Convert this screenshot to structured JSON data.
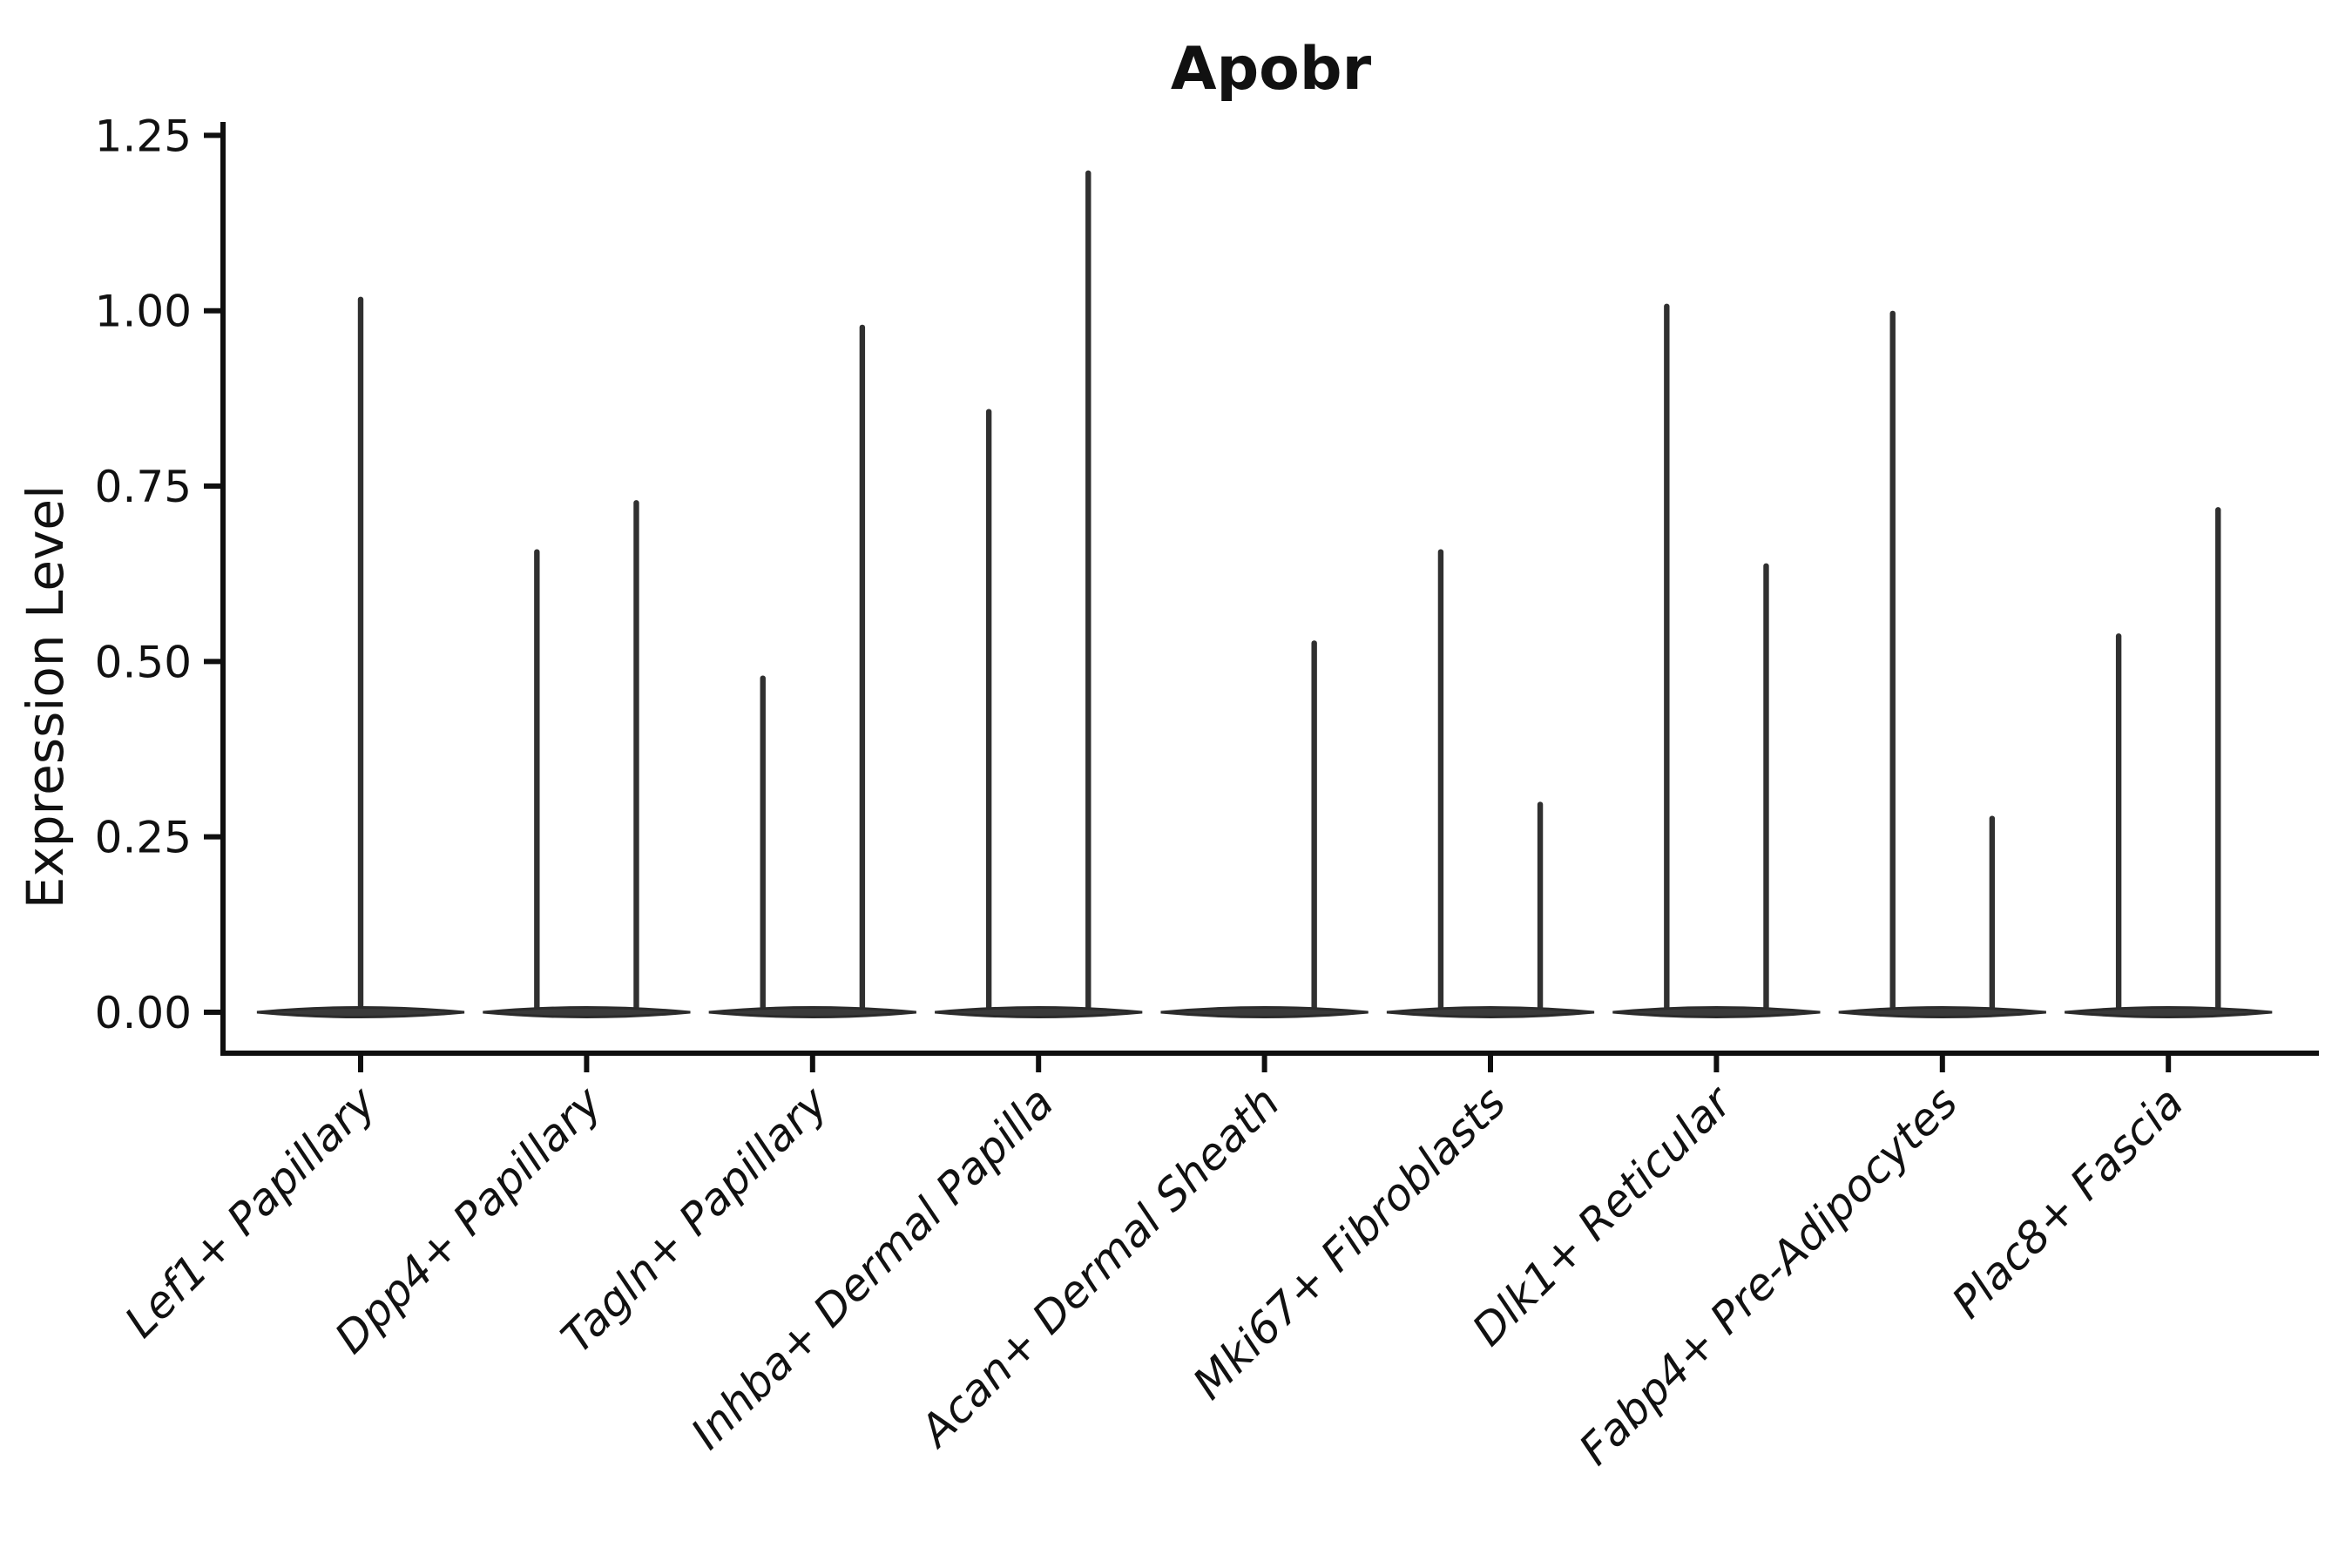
{
  "chart_data": {
    "type": "violin",
    "title": "Apobr",
    "ylabel": "Expression Level",
    "xlabel": "",
    "ytick_labels": [
      "0.00",
      "0.25",
      "0.50",
      "0.75",
      "1.00",
      "1.25"
    ],
    "ylim": [
      -0.06,
      1.27
    ],
    "grid": false,
    "legend": "none",
    "style_note": "sparse single-cell expression violins: all density mass collapsed in a flat dark lens at 0 with thin vertical max-expression spikes; x labels rotated 45deg italic",
    "colors": {
      "axis": "#0f0f0f",
      "text": "#111111",
      "violin_fill": "#3a3a3a",
      "violin_edge": "#2b2b2b",
      "spike": "#303030",
      "background": "#ffffff"
    },
    "categories": [
      "Lef1+ Papillary",
      "Dpp4+ Papillary",
      "Tagln+ Papillary",
      "Inhba+ Dermal Papilla",
      "Acan+ Dermal Sheath",
      "Mki67+ Fibroblasts",
      "Dlk1+ Reticular",
      "Fabp4+ Pre-Adipocytes",
      "Plac8+ Fascia"
    ],
    "violins": [
      {
        "category": "Lef1+ Papillary",
        "body_value": 0,
        "spikes": [
          {
            "offset": 0.0,
            "max": 1.02
          }
        ]
      },
      {
        "category": "Dpp4+ Papillary",
        "body_value": 0,
        "spikes": [
          {
            "offset": -0.22,
            "max": 0.66
          },
          {
            "offset": 0.22,
            "max": 0.73
          }
        ]
      },
      {
        "category": "Tagln+ Papillary",
        "body_value": 0,
        "spikes": [
          {
            "offset": -0.22,
            "max": 0.48
          },
          {
            "offset": 0.22,
            "max": 0.98
          }
        ]
      },
      {
        "category": "Inhba+ Dermal Papilla",
        "body_value": 0,
        "spikes": [
          {
            "offset": -0.22,
            "max": 0.86
          },
          {
            "offset": 0.22,
            "max": 1.2
          }
        ]
      },
      {
        "category": "Acan+ Dermal Sheath",
        "body_value": 0,
        "spikes": [
          {
            "offset": 0.22,
            "max": 0.53
          }
        ]
      },
      {
        "category": "Mki67+ Fibroblasts",
        "body_value": 0,
        "spikes": [
          {
            "offset": -0.22,
            "max": 0.66
          },
          {
            "offset": 0.22,
            "max": 0.3
          }
        ]
      },
      {
        "category": "Dlk1+ Reticular",
        "body_value": 0,
        "spikes": [
          {
            "offset": -0.22,
            "max": 1.01
          },
          {
            "offset": 0.22,
            "max": 0.64
          }
        ]
      },
      {
        "category": "Fabp4+ Pre-Adipocytes",
        "body_value": 0,
        "spikes": [
          {
            "offset": -0.22,
            "max": 1.0
          },
          {
            "offset": 0.22,
            "max": 0.28
          }
        ]
      },
      {
        "category": "Plac8+ Fascia",
        "body_value": 0,
        "spikes": [
          {
            "offset": -0.22,
            "max": 0.54
          },
          {
            "offset": 0.22,
            "max": 0.72
          }
        ]
      }
    ]
  }
}
